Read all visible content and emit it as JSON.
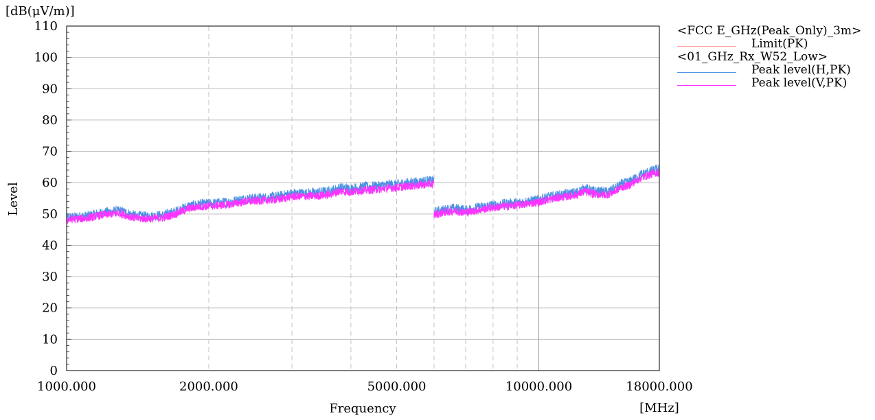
{
  "chart_data": {
    "type": "line",
    "y_unit_label": "[dB(μV/m)]",
    "ylabel": "Level",
    "xlabel": "Frequency",
    "x_unit_label": "[MHz]",
    "x_scale": "log",
    "xlim": [
      1000,
      18000
    ],
    "ylim": [
      0,
      110
    ],
    "y_ticks": [
      "0",
      "10",
      "20",
      "30",
      "40",
      "50",
      "60",
      "70",
      "80",
      "90",
      "100",
      "110"
    ],
    "x_tick_labels": [
      {
        "value": 1000,
        "label": "1000.000"
      },
      {
        "value": 2000,
        "label": "2000.000"
      },
      {
        "value": 5000,
        "label": "5000.000"
      },
      {
        "value": 10000,
        "label": "10000.000"
      },
      {
        "value": 18000,
        "label": "18000.000"
      }
    ],
    "vertical_gridlines": [
      2000,
      3000,
      4000,
      5000,
      6000,
      7000,
      8000,
      9000,
      10000
    ],
    "grid": true,
    "legend_position": "right",
    "legend": [
      {
        "kind": "group",
        "text": "<FCC E_GHz(Peak_Only)_3m>"
      },
      {
        "kind": "series",
        "text": "Limit(PK)",
        "color": "#ff9999"
      },
      {
        "kind": "group",
        "text": "<01_GHz_Rx_W52_Low>"
      },
      {
        "kind": "series",
        "text": "Peak level(H,PK)",
        "color": "#4a90e2"
      },
      {
        "kind": "series",
        "text": "Peak level(V,PK)",
        "color": "#ff33ff"
      }
    ],
    "series": [
      {
        "name": "Peak level(H,PK)",
        "color": "#4a90e2",
        "segments": [
          {
            "x": [
              1000,
              1100,
              1200,
              1300,
              1400,
              1500,
              1600,
              1700,
              1800,
              1900,
              2000,
              2200,
              2400,
              2600,
              2800,
              3000,
              3200,
              3400,
              3600,
              3800,
              4000,
              4200,
              4400,
              4600,
              4800,
              5000,
              5200,
              5400,
              5600,
              5800,
              6000
            ],
            "y": [
              48.8,
              49.3,
              50.5,
              51.0,
              49.4,
              49.3,
              49.6,
              50.8,
              52.4,
              53.1,
              53.3,
              53.8,
              54.9,
              55.2,
              55.6,
              56.6,
              56.6,
              56.9,
              57.3,
              58.4,
              58.1,
              58.6,
              58.8,
              59.0,
              59.4,
              59.5,
              59.9,
              60.1,
              60.3,
              60.6,
              60.6
            ]
          },
          {
            "x": [
              6000,
              6300,
              6600,
              7000,
              7300,
              7600,
              8000,
              8500,
              9000,
              9500,
              10000,
              10500,
              11000,
              11500,
              12000,
              12500,
              13000,
              13500,
              14000,
              14500,
              15000,
              15500,
              16000,
              16500,
              17000,
              17500,
              18000
            ],
            "y": [
              50.5,
              51.3,
              51.8,
              51.3,
              51.8,
              52.3,
              52.8,
              53.3,
              53.6,
              54.1,
              54.6,
              55.4,
              56.0,
              56.4,
              56.9,
              58.2,
              57.4,
              57.1,
              57.1,
              58.1,
              59.6,
              60.1,
              61.4,
              62.6,
              63.3,
              63.9,
              64.4
            ]
          }
        ]
      },
      {
        "name": "Peak level(V,PK)",
        "color": "#ff33ff",
        "segments": [
          {
            "x": [
              1000,
              1100,
              1200,
              1300,
              1400,
              1500,
              1600,
              1700,
              1800,
              1900,
              2000,
              2200,
              2400,
              2600,
              2800,
              3000,
              3200,
              3400,
              3600,
              3800,
              4000,
              4200,
              4400,
              4600,
              4800,
              5000,
              5200,
              5400,
              5600,
              5800,
              6000
            ],
            "y": [
              48.2,
              48.6,
              49.8,
              50.2,
              48.6,
              48.5,
              48.8,
              50.0,
              51.6,
              52.3,
              52.5,
              53.0,
              54.0,
              54.3,
              54.6,
              55.6,
              55.6,
              55.8,
              56.2,
              57.3,
              57.0,
              57.5,
              57.7,
              57.9,
              58.3,
              58.4,
              58.8,
              59.0,
              59.2,
              59.5,
              59.5
            ]
          },
          {
            "x": [
              6000,
              6300,
              6600,
              7000,
              7300,
              7600,
              8000,
              8500,
              9000,
              9500,
              10000,
              10500,
              11000,
              11500,
              12000,
              12500,
              13000,
              13500,
              14000,
              14500,
              15000,
              15500,
              16000,
              16500,
              17000,
              17500,
              18000
            ],
            "y": [
              49.8,
              50.5,
              51.0,
              50.5,
              51.0,
              51.5,
              52.0,
              52.5,
              52.8,
              53.3,
              53.8,
              54.6,
              55.2,
              55.6,
              56.1,
              57.2,
              56.5,
              56.2,
              56.2,
              57.2,
              58.6,
              59.1,
              60.4,
              61.6,
              62.3,
              62.9,
              63.4
            ]
          }
        ]
      }
    ]
  }
}
